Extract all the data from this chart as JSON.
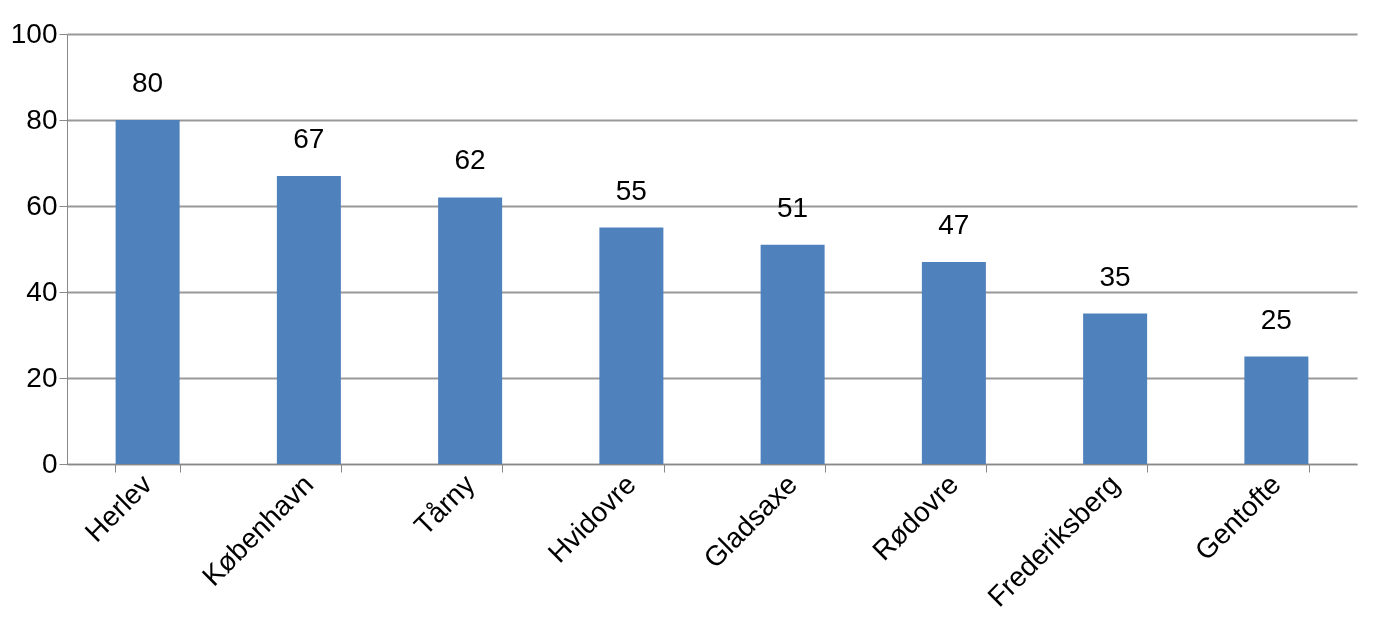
{
  "chart_data": {
    "type": "bar",
    "categories": [
      "Herlev",
      "København",
      "Tårny",
      "Hvidovre",
      "Gladsaxe",
      "Rødovre",
      "Frederiksberg",
      "Gentofte"
    ],
    "values": [
      80,
      67,
      62,
      55,
      51,
      47,
      35,
      25
    ],
    "color": "#4f81bd",
    "ylim": [
      0,
      100
    ],
    "yticks": [
      0,
      20,
      40,
      60,
      80,
      100
    ],
    "grid": "y",
    "data_labels": true
  }
}
